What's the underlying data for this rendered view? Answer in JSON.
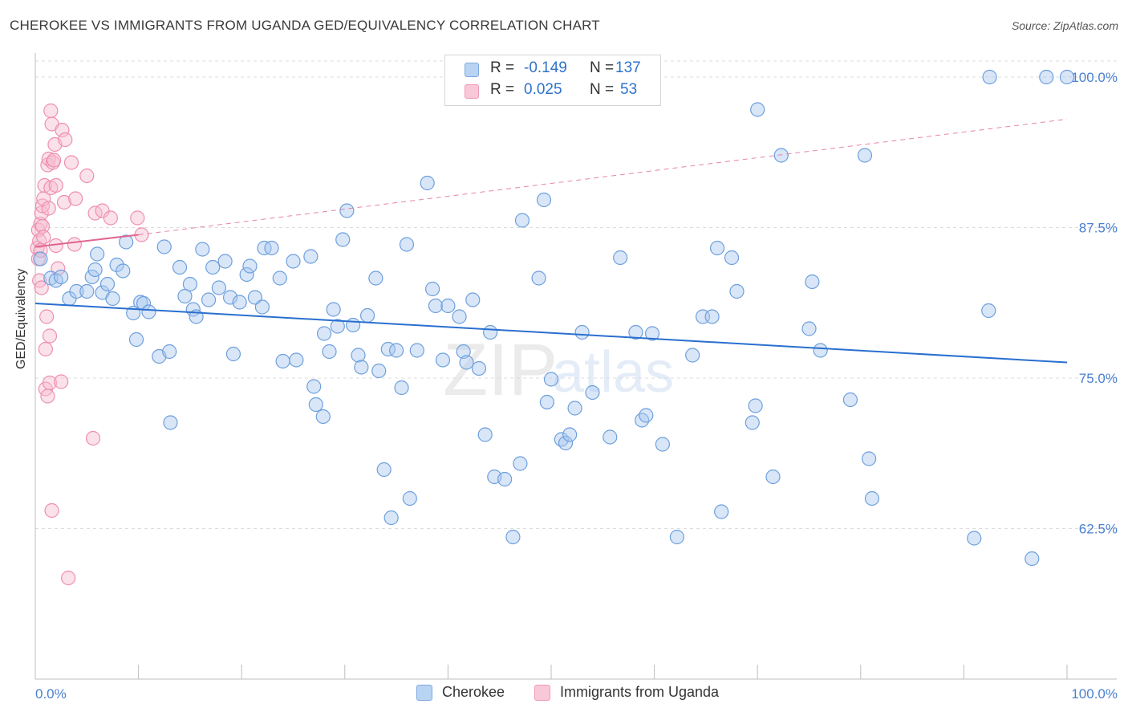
{
  "title": "CHEROKEE VS IMMIGRANTS FROM UGANDA GED/EQUIVALENCY CORRELATION CHART",
  "source": "Source: ZipAtlas.com",
  "watermark": {
    "zip": "ZIP",
    "atlas": "atlas"
  },
  "legend": {
    "rows": [
      {
        "r_label": "R =",
        "r_value": "-0.149",
        "n_label": "N =",
        "n_value": "137"
      },
      {
        "r_label": "R =",
        "r_value": "0.025",
        "n_label": "N =",
        "n_value": "53"
      }
    ]
  },
  "chart_data": {
    "type": "scatter",
    "title": "CHEROKEE VS IMMIGRANTS FROM UGANDA GED/EQUIVALENCY CORRELATION CHART",
    "xlabel": "",
    "ylabel": "GED/Equivalency",
    "xlim": [
      0,
      100
    ],
    "ylim": [
      50,
      102
    ],
    "x_tick_labels": [
      "0.0%",
      "100.0%"
    ],
    "y_ticks": [
      62.5,
      75.0,
      87.5,
      100.0
    ],
    "y_tick_labels": [
      "62.5%",
      "75.0%",
      "87.5%",
      "100.0%"
    ],
    "grid": true,
    "colors": {
      "cherokee_fill": "#a9c8f0",
      "cherokee_stroke": "#6d9fdc",
      "cherokee_line": "#2a6fcf",
      "uganda_fill": "#f7bdd0",
      "uganda_stroke": "#ee8fae",
      "uganda_line": "#e0668f",
      "tick_text": "#4a7fd0"
    },
    "series": [
      {
        "name": "Cherokee",
        "r": -0.149,
        "n": 137,
        "trend": {
          "x0": 0,
          "y0": 81.2,
          "x1": 100,
          "y1": 76.3
        },
        "points": [
          [
            0.5,
            84.9
          ],
          [
            1.5,
            83.3
          ],
          [
            2,
            83.1
          ],
          [
            2.5,
            83.4
          ],
          [
            3.3,
            81.6
          ],
          [
            4,
            82.2
          ],
          [
            5,
            82.2
          ],
          [
            5.5,
            83.4
          ],
          [
            5.8,
            84
          ],
          [
            6,
            85.3
          ],
          [
            6.5,
            82.1
          ],
          [
            7,
            82.8
          ],
          [
            7.5,
            81.6
          ],
          [
            7.9,
            84.4
          ],
          [
            8.5,
            83.9
          ],
          [
            8.8,
            86.3
          ],
          [
            9.5,
            80.4
          ],
          [
            9.8,
            78.2
          ],
          [
            10.2,
            81.3
          ],
          [
            10.5,
            81.2
          ],
          [
            11,
            80.5
          ],
          [
            12,
            76.8
          ],
          [
            12.5,
            85.9
          ],
          [
            13,
            77.2
          ],
          [
            13.1,
            71.3
          ],
          [
            14,
            84.2
          ],
          [
            14.5,
            81.8
          ],
          [
            15,
            82.8
          ],
          [
            15.3,
            80.7
          ],
          [
            15.6,
            80.1
          ],
          [
            16.2,
            85.7
          ],
          [
            16.8,
            81.5
          ],
          [
            17.2,
            84.2
          ],
          [
            17.8,
            82.5
          ],
          [
            18.4,
            84.7
          ],
          [
            18.9,
            81.7
          ],
          [
            19.2,
            77
          ],
          [
            19.8,
            81.3
          ],
          [
            20.5,
            83.6
          ],
          [
            20.8,
            84.3
          ],
          [
            21.3,
            81.7
          ],
          [
            22,
            80.9
          ],
          [
            22.2,
            85.8
          ],
          [
            22.9,
            85.8
          ],
          [
            23.7,
            83.3
          ],
          [
            24,
            76.4
          ],
          [
            25,
            84.7
          ],
          [
            25.3,
            76.5
          ],
          [
            26.7,
            85.1
          ],
          [
            27,
            74.3
          ],
          [
            27.2,
            72.8
          ],
          [
            27.9,
            71.8
          ],
          [
            28,
            78.7
          ],
          [
            28.5,
            77.2
          ],
          [
            28.9,
            80.7
          ],
          [
            29.3,
            79.3
          ],
          [
            29.8,
            86.5
          ],
          [
            30.2,
            88.9
          ],
          [
            30.8,
            79.4
          ],
          [
            31.3,
            76.9
          ],
          [
            31.6,
            75.9
          ],
          [
            32.2,
            80.2
          ],
          [
            33,
            83.3
          ],
          [
            33.3,
            75.6
          ],
          [
            33.8,
            67.4
          ],
          [
            34.2,
            77.4
          ],
          [
            34.5,
            63.4
          ],
          [
            35,
            77.3
          ],
          [
            35.5,
            74.2
          ],
          [
            36,
            86.1
          ],
          [
            36.3,
            65
          ],
          [
            37,
            77.3
          ],
          [
            38,
            91.2
          ],
          [
            38.5,
            82.4
          ],
          [
            38.8,
            81
          ],
          [
            39.5,
            76.5
          ],
          [
            40,
            81
          ],
          [
            41.1,
            80.1
          ],
          [
            41.5,
            77.2
          ],
          [
            41.8,
            76.3
          ],
          [
            42.4,
            81.5
          ],
          [
            43,
            75.8
          ],
          [
            43.6,
            70.3
          ],
          [
            44.1,
            78.8
          ],
          [
            44.5,
            66.8
          ],
          [
            45.5,
            66.6
          ],
          [
            46.3,
            61.8
          ],
          [
            47,
            67.9
          ],
          [
            47.2,
            88.1
          ],
          [
            48.8,
            83.3
          ],
          [
            49.3,
            89.8
          ],
          [
            49.6,
            73
          ],
          [
            50,
            74.9
          ],
          [
            51,
            69.9
          ],
          [
            51.4,
            69.6
          ],
          [
            51.8,
            70.3
          ],
          [
            52.3,
            72.5
          ],
          [
            53,
            78.8
          ],
          [
            54,
            73.8
          ],
          [
            55.7,
            70.1
          ],
          [
            56.7,
            85
          ],
          [
            58.2,
            78.8
          ],
          [
            58.8,
            71.5
          ],
          [
            59.2,
            71.9
          ],
          [
            59.8,
            78.7
          ],
          [
            60.8,
            69.5
          ],
          [
            62.2,
            61.8
          ],
          [
            63.7,
            76.9
          ],
          [
            64.7,
            80.1
          ],
          [
            65.6,
            80.1
          ],
          [
            66.1,
            85.8
          ],
          [
            66.5,
            63.9
          ],
          [
            67.5,
            85
          ],
          [
            68,
            82.2
          ],
          [
            69.5,
            71.3
          ],
          [
            69.8,
            72.7
          ],
          [
            70,
            97.3
          ],
          [
            71.5,
            66.8
          ],
          [
            72.3,
            93.5
          ],
          [
            75,
            79.1
          ],
          [
            75.3,
            83
          ],
          [
            76.1,
            77.3
          ],
          [
            79,
            73.2
          ],
          [
            80.4,
            93.5
          ],
          [
            80.8,
            68.3
          ],
          [
            81.1,
            65
          ],
          [
            91,
            61.7
          ],
          [
            92.4,
            80.6
          ],
          [
            92.5,
            100
          ],
          [
            96.6,
            60
          ],
          [
            98,
            100
          ],
          [
            100,
            100
          ]
        ]
      },
      {
        "name": "Immigrants from Uganda",
        "r": 0.025,
        "n": 53,
        "trend": {
          "x0": 0,
          "y0": 85.9,
          "x1": 10,
          "y1": 86.9,
          "dashed_to": {
            "x": 100,
            "y": 96.5
          }
        },
        "points": [
          [
            0.2,
            85.8
          ],
          [
            0.3,
            87.3
          ],
          [
            0.3,
            84.9
          ],
          [
            0.4,
            86.4
          ],
          [
            0.4,
            83.1
          ],
          [
            0.5,
            85.6
          ],
          [
            0.5,
            87.8
          ],
          [
            0.6,
            82.5
          ],
          [
            0.6,
            88.7
          ],
          [
            0.7,
            89.3
          ],
          [
            0.7,
            87.6
          ],
          [
            0.8,
            86.7
          ],
          [
            0.8,
            89.9
          ],
          [
            0.9,
            91
          ],
          [
            1,
            77.4
          ],
          [
            1,
            74.1
          ],
          [
            1.1,
            80.1
          ],
          [
            1.2,
            73.5
          ],
          [
            1.2,
            92.7
          ],
          [
            1.3,
            93.2
          ],
          [
            1.3,
            89.1
          ],
          [
            1.4,
            78.5
          ],
          [
            1.4,
            74.6
          ],
          [
            1.5,
            97.2
          ],
          [
            1.5,
            90.8
          ],
          [
            1.6,
            64
          ],
          [
            1.6,
            96.1
          ],
          [
            1.7,
            92.9
          ],
          [
            1.8,
            93.1
          ],
          [
            1.9,
            94.4
          ],
          [
            2,
            86
          ],
          [
            2,
            91
          ],
          [
            2.2,
            84.1
          ],
          [
            2.5,
            74.7
          ],
          [
            2.6,
            95.6
          ],
          [
            2.8,
            89.6
          ],
          [
            2.9,
            94.8
          ],
          [
            3.2,
            58.4
          ],
          [
            3.5,
            92.9
          ],
          [
            3.8,
            86.1
          ],
          [
            3.9,
            89.9
          ],
          [
            5,
            91.8
          ],
          [
            5.6,
            70
          ],
          [
            5.8,
            88.7
          ],
          [
            6.5,
            88.9
          ],
          [
            7.3,
            88.3
          ],
          [
            9.9,
            88.3
          ],
          [
            10.3,
            86.9
          ]
        ]
      }
    ]
  },
  "bottom_legend": [
    {
      "label": "Cherokee"
    },
    {
      "label": "Immigrants from Uganda"
    }
  ]
}
